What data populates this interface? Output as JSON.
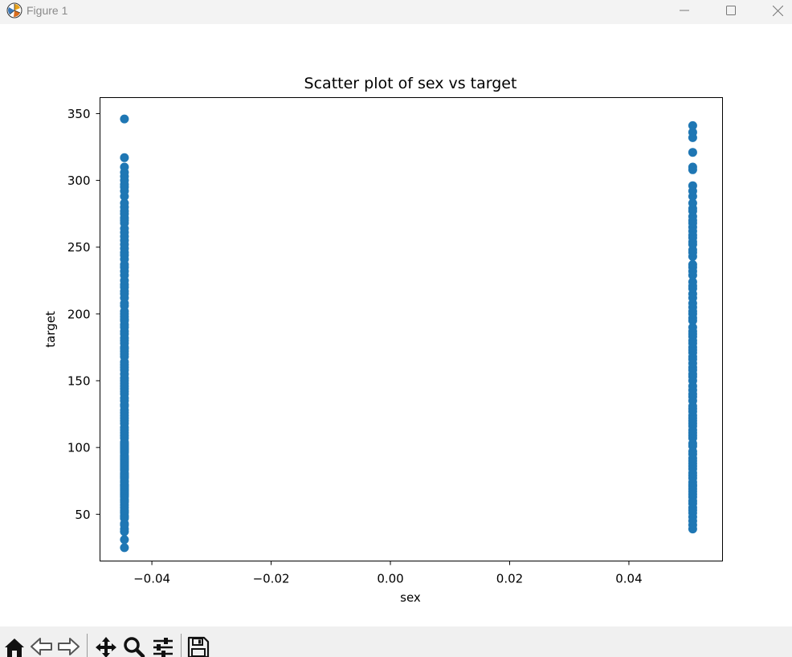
{
  "window": {
    "title": "Figure 1"
  },
  "toolbar": {
    "tools": [
      "home-icon",
      "back-icon",
      "forward-icon",
      "pan-icon",
      "zoom-icon",
      "configure-subplots-icon",
      "save-icon"
    ]
  },
  "chart_data": {
    "type": "scatter",
    "title": "Scatter plot of sex vs target",
    "xlabel": "sex",
    "ylabel": "target",
    "xlim": [
      -0.0487,
      0.0557
    ],
    "ylim": [
      15,
      362
    ],
    "xticks": [
      -0.04,
      -0.02,
      0.0,
      0.02,
      0.04
    ],
    "xtick_labels": [
      "−0.04",
      "−0.02",
      "0.00",
      "0.02",
      "0.04"
    ],
    "yticks": [
      50,
      100,
      150,
      200,
      250,
      300,
      350
    ],
    "ytick_labels": [
      "50",
      "100",
      "150",
      "200",
      "250",
      "300",
      "350"
    ],
    "grid": false,
    "color": "#1f77b4",
    "series": [
      {
        "x_value": -0.0446,
        "y": [
          25,
          31,
          37,
          39,
          42,
          43,
          47,
          48,
          49,
          51,
          52,
          53,
          55,
          57,
          59,
          60,
          61,
          63,
          64,
          65,
          66,
          67,
          68,
          69,
          70,
          71,
          72,
          72,
          74,
          75,
          77,
          78,
          79,
          80,
          81,
          83,
          84,
          85,
          86,
          87,
          88,
          89,
          90,
          91,
          92,
          93,
          94,
          96,
          97,
          98,
          99,
          100,
          101,
          102,
          103,
          104,
          107,
          109,
          111,
          113,
          115,
          118,
          120,
          122,
          124,
          126,
          128,
          131,
          132,
          135,
          137,
          140,
          142,
          144,
          146,
          148,
          150,
          152,
          155,
          158,
          160,
          162,
          164,
          168,
          170,
          172,
          174,
          175,
          178,
          180,
          182,
          185,
          187,
          190,
          192,
          195,
          196,
          198,
          200,
          202,
          206,
          208,
          212,
          215,
          217,
          220,
          222,
          225,
          229,
          232,
          235,
          237,
          241,
          244,
          246,
          249,
          252,
          255,
          258,
          261,
          264,
          268,
          270,
          272,
          275,
          277,
          280,
          283,
          288,
          292,
          295,
          297,
          300,
          303,
          306,
          310,
          317,
          346
        ]
      },
      {
        "x_value": 0.0507,
        "y": [
          39,
          42,
          45,
          48,
          51,
          53,
          55,
          58,
          60,
          63,
          65,
          67,
          69,
          71,
          72,
          74,
          77,
          79,
          81,
          84,
          86,
          88,
          90,
          92,
          95,
          97,
          101,
          103,
          107,
          109,
          111,
          113,
          116,
          118,
          120,
          122,
          124,
          127,
          129,
          131,
          135,
          138,
          140,
          143,
          146,
          150,
          153,
          155,
          158,
          160,
          163,
          166,
          168,
          171,
          173,
          175,
          178,
          180,
          183,
          185,
          187,
          190,
          195,
          197,
          200,
          202,
          205,
          208,
          212,
          215,
          219,
          221,
          224,
          229,
          232,
          235,
          237,
          243,
          246,
          248,
          252,
          254,
          257,
          259,
          262,
          265,
          268,
          270,
          273,
          277,
          279,
          283,
          288,
          292,
          296,
          308,
          310,
          321,
          332,
          336,
          341
        ]
      }
    ]
  }
}
